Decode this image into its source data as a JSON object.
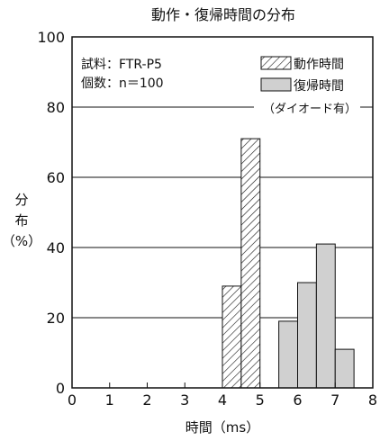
{
  "chart_data": {
    "type": "bar",
    "title": "動作・復帰時間の分布",
    "xlabel": "時間（ms）",
    "ylabel": {
      "line1": "分",
      "line2": "布",
      "line3": "（%）"
    },
    "xlim": [
      0,
      8
    ],
    "ylim": [
      0,
      100
    ],
    "x_ticks": [
      "0",
      "1",
      "2",
      "3",
      "4",
      "5",
      "6",
      "7",
      "8"
    ],
    "y_ticks": [
      "0",
      "20",
      "40",
      "60",
      "80",
      "100"
    ],
    "grid": "horizontal",
    "info": {
      "sample": "試料：FTR-P5",
      "count": "個数：n＝100"
    },
    "note": "（ダイオード有）",
    "legend_position": "top-right",
    "series": [
      {
        "name": "動作時間",
        "pattern": "hatch",
        "bins": [
          {
            "x0": 4.0,
            "x1": 4.5,
            "value": 29
          },
          {
            "x0": 4.5,
            "x1": 5.0,
            "value": 71
          }
        ]
      },
      {
        "name": "復帰時間",
        "pattern": "gray",
        "bins": [
          {
            "x0": 5.5,
            "x1": 6.0,
            "value": 19
          },
          {
            "x0": 6.0,
            "x1": 6.5,
            "value": 30
          },
          {
            "x0": 6.5,
            "x1": 7.0,
            "value": 41
          },
          {
            "x0": 7.0,
            "x1": 7.5,
            "value": 11
          }
        ]
      }
    ],
    "colors": {
      "gray_fill": "#d0d0d0",
      "stroke": "#111111"
    }
  }
}
